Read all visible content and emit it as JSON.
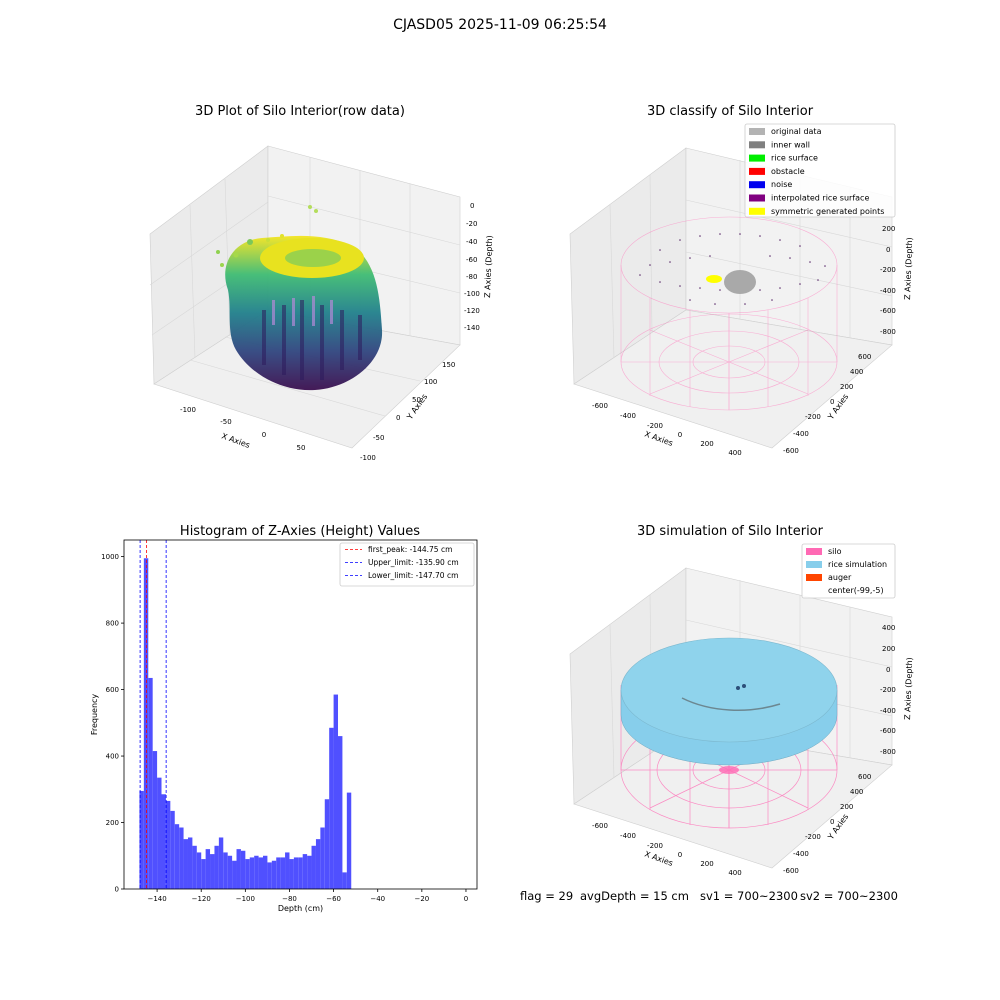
{
  "suptitle": "CJASD05 2025-11-09 06:25:54",
  "panels": {
    "raw": {
      "title": "3D Plot of Silo Interior(row data)",
      "xlabel": "X Axies",
      "ylabel": "Y Axies",
      "zlabel": "Z Axies (Depth)",
      "xticks": [
        "-100",
        "-50",
        "0",
        "50"
      ],
      "yticks": [
        "-100",
        "-50",
        "0",
        "50",
        "100",
        "150"
      ],
      "zticks": [
        "0",
        "-20",
        "-40",
        "-60",
        "-80",
        "-100",
        "-120",
        "-140"
      ]
    },
    "classify": {
      "title": "3D classify of Silo Interior",
      "xlabel": "X Axies",
      "ylabel": "Y Axies",
      "zlabel": "Z Axies (Depth)",
      "xticks": [
        "-600",
        "-400",
        "-200",
        "0",
        "200",
        "400"
      ],
      "yticks": [
        "-600",
        "-400",
        "-200",
        "0",
        "200",
        "400",
        "600"
      ],
      "zticks": [
        "200",
        "0",
        "-200",
        "-400",
        "-600",
        "-800"
      ],
      "legend": [
        {
          "label": "original data",
          "color": "#b3b3b3"
        },
        {
          "label": "inner wall",
          "color": "#808080"
        },
        {
          "label": "rice surface",
          "color": "#00ee00"
        },
        {
          "label": "obstacle",
          "color": "#ff0000"
        },
        {
          "label": "noise",
          "color": "#0000ee"
        },
        {
          "label": "interpolated rice surface",
          "color": "#800080"
        },
        {
          "label": "symmetric generated points",
          "color": "#ffff00"
        }
      ]
    },
    "simulation": {
      "title": "3D simulation of Silo Interior",
      "xlabel": "X Axies",
      "ylabel": "Y Axies",
      "zlabel": "Z Axies (Depth)",
      "xticks": [
        "-600",
        "-400",
        "-200",
        "0",
        "200",
        "400"
      ],
      "yticks": [
        "-600",
        "-400",
        "-200",
        "0",
        "200",
        "400",
        "600"
      ],
      "zticks": [
        "400",
        "200",
        "0",
        "-200",
        "-400",
        "-600",
        "-800"
      ],
      "legend": [
        {
          "label": "silo",
          "color": "#ff69b4"
        },
        {
          "label": "rice simulation",
          "color": "#87ceeb"
        },
        {
          "label": "auger",
          "color": "#ff4500"
        },
        {
          "label": "center(-99,-5)",
          "color": "#ffffff"
        }
      ]
    }
  },
  "chart_data": {
    "type": "bar",
    "title": "Histogram of Z-Axies (Height) Values",
    "xlabel": "Depth (cm)",
    "ylabel": "Frequency",
    "xlim": [
      -155,
      5
    ],
    "ylim": [
      0,
      1050
    ],
    "xticks": [
      -140,
      -120,
      -100,
      -80,
      -60,
      -40,
      -20,
      0
    ],
    "yticks": [
      0,
      200,
      400,
      600,
      800,
      1000
    ],
    "bar_color": "#5050ff",
    "bin_width": 2,
    "bin_start": -148,
    "values": [
      295,
      995,
      635,
      415,
      335,
      285,
      265,
      235,
      195,
      185,
      150,
      155,
      130,
      110,
      90,
      120,
      105,
      130,
      155,
      110,
      100,
      85,
      120,
      115,
      90,
      95,
      100,
      95,
      100,
      80,
      85,
      95,
      95,
      110,
      90,
      95,
      95,
      105,
      100,
      130,
      150,
      185,
      270,
      485,
      585,
      460,
      50,
      290
    ],
    "vlines": [
      {
        "label": "first_peak: -144.75 cm",
        "x": -144.75,
        "color": "#ff0000"
      },
      {
        "label": "Upper_limit: -135.90 cm",
        "x": -135.9,
        "color": "#0000ff"
      },
      {
        "label": "Lower_limit: -147.70 cm",
        "x": -147.7,
        "color": "#0000ff"
      }
    ],
    "legend_position": "top-right"
  },
  "footer": {
    "flag": "flag = 29",
    "avgDepth": "avgDepth = 15 cm",
    "sv1": "sv1 = 700~2300",
    "sv2": "sv2 = 700~2300"
  }
}
